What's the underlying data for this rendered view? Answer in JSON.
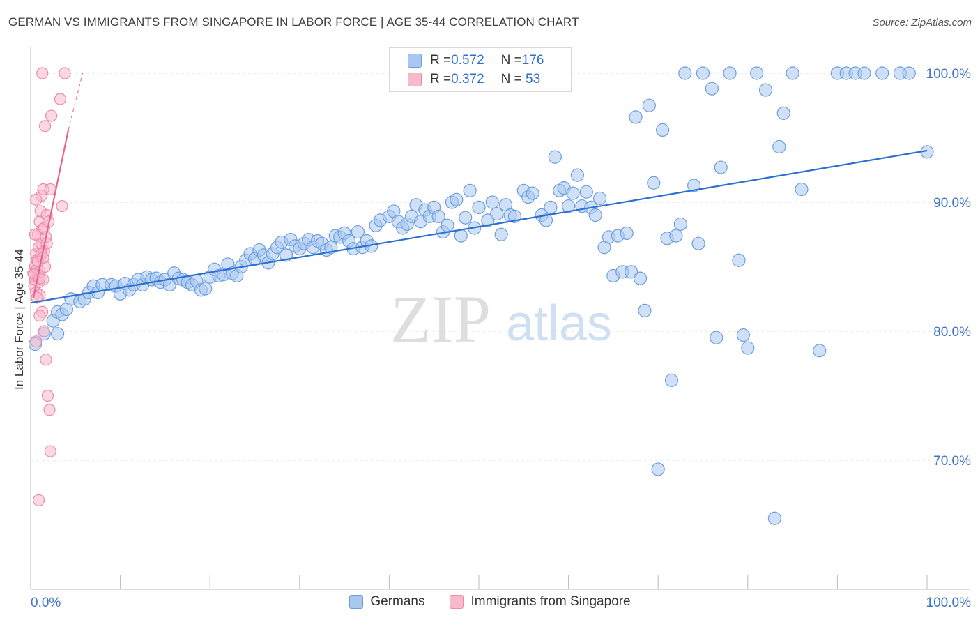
{
  "title": "GERMAN VS IMMIGRANTS FROM SINGAPORE IN LABOR FORCE | AGE 35-44 CORRELATION CHART",
  "source": "Source: ZipAtlas.com",
  "watermark": {
    "zip": "ZIP",
    "atlas": "atlas"
  },
  "legend": {
    "row1": {
      "r_label": "R = ",
      "r_value": "0.572",
      "n_label": "N = ",
      "n_value": "176"
    },
    "row2": {
      "r_label": "R = ",
      "r_value": "0.372",
      "n_label": "N = ",
      "n_value": " 53"
    }
  },
  "bottom_legend": {
    "germans": "Germans",
    "singapore": "Immigrants from Singapore"
  },
  "colors": {
    "blue_fill": "#a9c8f0",
    "blue_stroke": "#6b9ee0",
    "blue_line": "#2b6fd0",
    "pink_fill": "#f7b9cc",
    "pink_stroke": "#ee8aa8",
    "pink_line": "#e8628f",
    "axis_text": "#3f74c8",
    "grid": "#dcdcdc"
  },
  "chart_data": {
    "type": "scatter",
    "title": "GERMAN VS IMMIGRANTS FROM SINGAPORE IN LABOR FORCE | AGE 35-44 CORRELATION CHART",
    "xlabel": "",
    "ylabel": "In Labor Force | Age 35-44",
    "xlim": [
      0,
      100
    ],
    "ylim": [
      60,
      102
    ],
    "x_tick_labels": [
      "0.0%",
      "100.0%"
    ],
    "y_ticks": [
      70,
      80,
      90,
      100
    ],
    "y_tick_labels": [
      "70.0%",
      "80.0%",
      "90.0%",
      "100.0%"
    ],
    "grid": true,
    "legend_position": "top-center",
    "series": [
      {
        "name": "Germans",
        "r": 0.572,
        "n": 176,
        "trend": {
          "x": [
            0,
            100
          ],
          "y": [
            82.2,
            94.0
          ]
        },
        "points": [
          [
            0.5,
            79.0
          ],
          [
            1.5,
            79.8
          ],
          [
            2.5,
            80.8
          ],
          [
            3.0,
            79.8
          ],
          [
            3.0,
            81.5
          ],
          [
            3.5,
            81.3
          ],
          [
            4.0,
            81.7
          ],
          [
            4.5,
            82.5
          ],
          [
            5.5,
            82.3
          ],
          [
            6.0,
            82.5
          ],
          [
            6.5,
            83.0
          ],
          [
            7.0,
            83.5
          ],
          [
            7.5,
            83.0
          ],
          [
            8.0,
            83.6
          ],
          [
            9.0,
            83.6
          ],
          [
            9.5,
            83.5
          ],
          [
            10.0,
            82.9
          ],
          [
            10.5,
            83.7
          ],
          [
            11.0,
            83.2
          ],
          [
            11.5,
            83.6
          ],
          [
            12.0,
            84.0
          ],
          [
            12.5,
            83.6
          ],
          [
            13.0,
            84.2
          ],
          [
            13.5,
            84.0
          ],
          [
            14.0,
            84.1
          ],
          [
            14.5,
            83.8
          ],
          [
            15.0,
            84.0
          ],
          [
            15.5,
            83.6
          ],
          [
            16.0,
            84.5
          ],
          [
            16.5,
            84.1
          ],
          [
            17.0,
            84.0
          ],
          [
            17.5,
            83.8
          ],
          [
            18.0,
            83.6
          ],
          [
            18.5,
            83.9
          ],
          [
            19.0,
            83.2
          ],
          [
            19.5,
            83.3
          ],
          [
            20.0,
            84.2
          ],
          [
            20.5,
            84.8
          ],
          [
            21.0,
            84.3
          ],
          [
            21.5,
            84.4
          ],
          [
            22.0,
            85.2
          ],
          [
            22.5,
            84.5
          ],
          [
            23.0,
            84.3
          ],
          [
            23.5,
            85.0
          ],
          [
            24.0,
            85.5
          ],
          [
            24.5,
            86.0
          ],
          [
            25.0,
            85.6
          ],
          [
            25.5,
            86.3
          ],
          [
            26.0,
            85.9
          ],
          [
            26.5,
            85.3
          ],
          [
            27.0,
            86.0
          ],
          [
            27.5,
            86.5
          ],
          [
            28.0,
            86.9
          ],
          [
            28.5,
            85.9
          ],
          [
            29.0,
            87.1
          ],
          [
            29.5,
            86.6
          ],
          [
            30.0,
            86.4
          ],
          [
            30.5,
            86.8
          ],
          [
            31.0,
            87.1
          ],
          [
            31.5,
            86.5
          ],
          [
            32.0,
            87.0
          ],
          [
            32.5,
            86.8
          ],
          [
            33.0,
            86.3
          ],
          [
            33.5,
            86.5
          ],
          [
            34.0,
            87.4
          ],
          [
            34.5,
            87.3
          ],
          [
            35.0,
            87.6
          ],
          [
            35.5,
            87.0
          ],
          [
            36.0,
            86.4
          ],
          [
            36.5,
            87.7
          ],
          [
            37.0,
            86.5
          ],
          [
            37.5,
            87.0
          ],
          [
            38.0,
            86.6
          ],
          [
            38.5,
            88.2
          ],
          [
            39.0,
            88.6
          ],
          [
            40.0,
            88.9
          ],
          [
            40.5,
            89.3
          ],
          [
            41.0,
            88.5
          ],
          [
            41.5,
            88.0
          ],
          [
            42.0,
            88.3
          ],
          [
            42.5,
            88.9
          ],
          [
            43.0,
            89.8
          ],
          [
            43.5,
            88.5
          ],
          [
            44.0,
            89.4
          ],
          [
            44.5,
            88.9
          ],
          [
            45.0,
            89.6
          ],
          [
            45.5,
            88.9
          ],
          [
            46.0,
            87.7
          ],
          [
            46.5,
            88.2
          ],
          [
            47.0,
            90.0
          ],
          [
            47.5,
            90.2
          ],
          [
            48.0,
            87.4
          ],
          [
            48.5,
            88.8
          ],
          [
            49.0,
            90.9
          ],
          [
            49.5,
            88.0
          ],
          [
            50.0,
            89.6
          ],
          [
            51.0,
            88.6
          ],
          [
            51.5,
            90.0
          ],
          [
            52.0,
            89.1
          ],
          [
            52.5,
            87.5
          ],
          [
            53.0,
            89.8
          ],
          [
            53.5,
            89.0
          ],
          [
            54.0,
            88.9
          ],
          [
            55.0,
            90.9
          ],
          [
            55.5,
            90.4
          ],
          [
            56.0,
            90.7
          ],
          [
            57.0,
            89.0
          ],
          [
            57.5,
            88.6
          ],
          [
            58.0,
            89.6
          ],
          [
            58.5,
            93.5
          ],
          [
            59.0,
            90.9
          ],
          [
            59.5,
            91.1
          ],
          [
            60.0,
            89.7
          ],
          [
            60.5,
            90.7
          ],
          [
            61.0,
            92.1
          ],
          [
            61.5,
            89.7
          ],
          [
            62.0,
            90.8
          ],
          [
            62.5,
            89.6
          ],
          [
            63.0,
            89.0
          ],
          [
            63.5,
            90.3
          ],
          [
            64.0,
            86.5
          ],
          [
            64.5,
            87.3
          ],
          [
            65.0,
            84.3
          ],
          [
            65.5,
            87.4
          ],
          [
            66.0,
            84.6
          ],
          [
            66.5,
            87.6
          ],
          [
            67.0,
            84.6
          ],
          [
            67.5,
            96.6
          ],
          [
            68.0,
            84.1
          ],
          [
            68.5,
            81.6
          ],
          [
            69.0,
            97.5
          ],
          [
            69.5,
            91.5
          ],
          [
            70.0,
            69.3
          ],
          [
            70.5,
            95.6
          ],
          [
            71.0,
            87.2
          ],
          [
            71.5,
            76.2
          ],
          [
            72.0,
            87.4
          ],
          [
            72.5,
            88.3
          ],
          [
            73.0,
            100.0
          ],
          [
            74.0,
            91.3
          ],
          [
            74.5,
            86.8
          ],
          [
            75.0,
            100.0
          ],
          [
            76.0,
            98.8
          ],
          [
            76.5,
            79.5
          ],
          [
            77.0,
            92.7
          ],
          [
            78.0,
            100.0
          ],
          [
            79.0,
            85.5
          ],
          [
            79.5,
            79.7
          ],
          [
            80.0,
            78.7
          ],
          [
            81.0,
            100.0
          ],
          [
            82.0,
            98.7
          ],
          [
            83.0,
            65.5
          ],
          [
            83.5,
            94.3
          ],
          [
            84.0,
            96.9
          ],
          [
            85.0,
            100.0
          ],
          [
            86.0,
            91.0
          ],
          [
            88.0,
            78.5
          ],
          [
            90.0,
            100.0
          ],
          [
            91.0,
            100.0
          ],
          [
            92.0,
            100.0
          ],
          [
            93.0,
            100.0
          ],
          [
            95.0,
            100.0
          ],
          [
            97.0,
            100.0
          ],
          [
            98.0,
            100.0
          ],
          [
            100.0,
            93.9
          ]
        ]
      },
      {
        "name": "Immigrants from Singapore",
        "r": 0.372,
        "n": 53,
        "trend": {
          "x": [
            0.3,
            4.2
          ],
          "y": [
            82.6,
            95.6
          ]
        },
        "trend_dashed": {
          "x": [
            4.2,
            5.8
          ],
          "y": [
            95.6,
            100.0
          ]
        },
        "points": [
          [
            0.3,
            84.5
          ],
          [
            0.4,
            83.5
          ],
          [
            0.5,
            85.0
          ],
          [
            0.5,
            84.0
          ],
          [
            0.6,
            86.0
          ],
          [
            0.6,
            83.0
          ],
          [
            0.7,
            84.8
          ],
          [
            0.7,
            85.5
          ],
          [
            0.8,
            84.2
          ],
          [
            0.8,
            87.5
          ],
          [
            0.9,
            83.8
          ],
          [
            0.9,
            86.5
          ],
          [
            1.0,
            84.6
          ],
          [
            1.0,
            88.5
          ],
          [
            1.0,
            82.8
          ],
          [
            1.1,
            85.8
          ],
          [
            1.1,
            89.3
          ],
          [
            1.2,
            86.8
          ],
          [
            1.2,
            90.5
          ],
          [
            1.3,
            87.9
          ],
          [
            1.3,
            81.5
          ],
          [
            1.4,
            84.0
          ],
          [
            1.4,
            91.0
          ],
          [
            1.5,
            86.2
          ],
          [
            1.5,
            88.0
          ],
          [
            1.5,
            80.0
          ],
          [
            1.6,
            85.0
          ],
          [
            1.6,
            95.9
          ],
          [
            1.7,
            87.3
          ],
          [
            1.7,
            77.8
          ],
          [
            1.8,
            89.0
          ],
          [
            1.8,
            86.8
          ],
          [
            1.9,
            75.0
          ],
          [
            2.0,
            88.5
          ],
          [
            2.1,
            73.9
          ],
          [
            2.2,
            91.0
          ],
          [
            2.2,
            70.7
          ],
          [
            2.3,
            96.7
          ],
          [
            0.9,
            66.9
          ],
          [
            0.6,
            79.2
          ],
          [
            0.4,
            84.4
          ],
          [
            0.7,
            82.6
          ],
          [
            1.0,
            84.1
          ],
          [
            1.2,
            86.0
          ],
          [
            0.8,
            85.4
          ],
          [
            0.5,
            87.5
          ],
          [
            1.3,
            100.0
          ],
          [
            3.3,
            98.0
          ],
          [
            3.5,
            89.7
          ],
          [
            3.8,
            100.0
          ],
          [
            1.0,
            81.2
          ],
          [
            0.6,
            90.2
          ],
          [
            1.4,
            85.7
          ]
        ]
      }
    ]
  }
}
